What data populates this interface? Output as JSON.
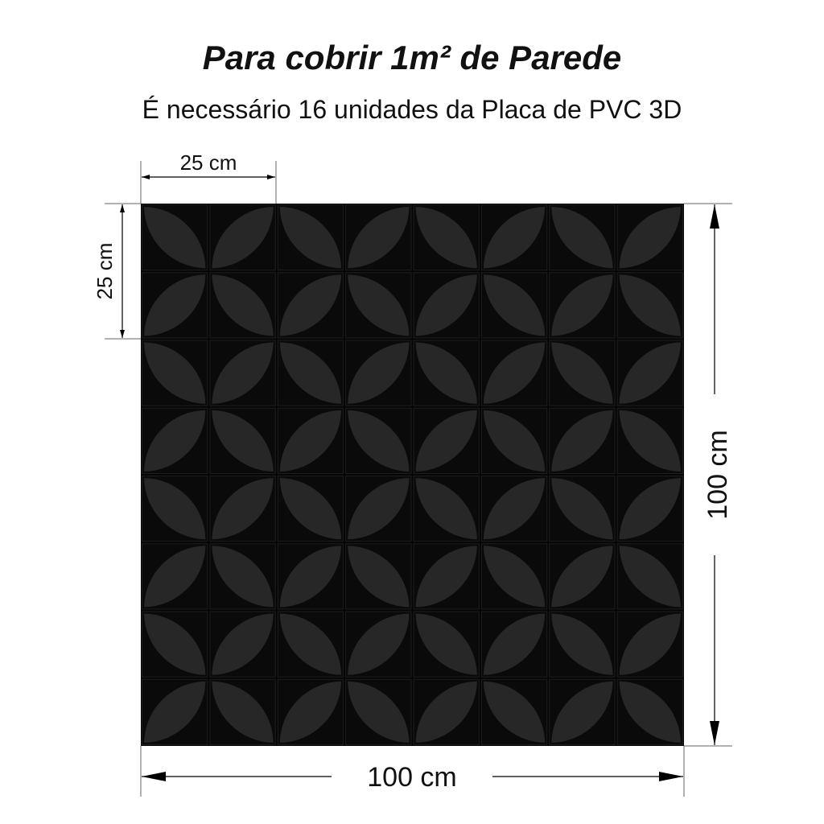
{
  "header": {
    "title": "Para cobrir 1m² de Parede",
    "subtitle": "É necessário 16 unidades da Placa de PVC 3D"
  },
  "dimensions": {
    "plate_width": "25 cm",
    "plate_height": "25 cm",
    "wall_height": "100 cm",
    "wall_width": "100 cm"
  },
  "panel": {
    "plates_per_side": 4,
    "petal_color": "#2a2a2a",
    "background_color": "#050505"
  }
}
